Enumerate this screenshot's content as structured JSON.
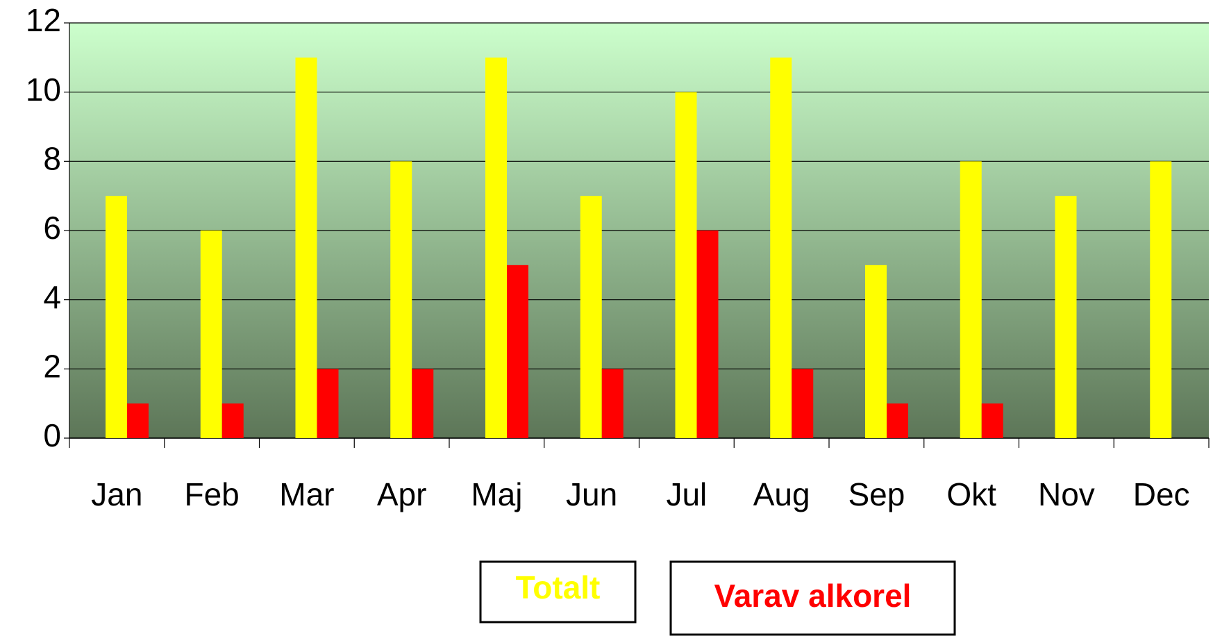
{
  "chart_data": {
    "type": "bar",
    "categories": [
      "Jan",
      "Feb",
      "Mar",
      "Apr",
      "Maj",
      "Jun",
      "Jul",
      "Aug",
      "Sep",
      "Okt",
      "Nov",
      "Dec"
    ],
    "series": [
      {
        "name": "Totalt",
        "color": "#ffff00",
        "values": [
          7,
          6,
          11,
          8,
          11,
          7,
          10,
          11,
          5,
          8,
          7,
          8
        ]
      },
      {
        "name": "Varav alkorel",
        "color": "#ff0000",
        "values": [
          1,
          1,
          2,
          2,
          5,
          2,
          6,
          2,
          1,
          1,
          0,
          0
        ]
      }
    ],
    "ylim": [
      0,
      12
    ],
    "yticks": [
      0,
      2,
      4,
      6,
      8,
      10,
      12
    ],
    "grid": true
  }
}
